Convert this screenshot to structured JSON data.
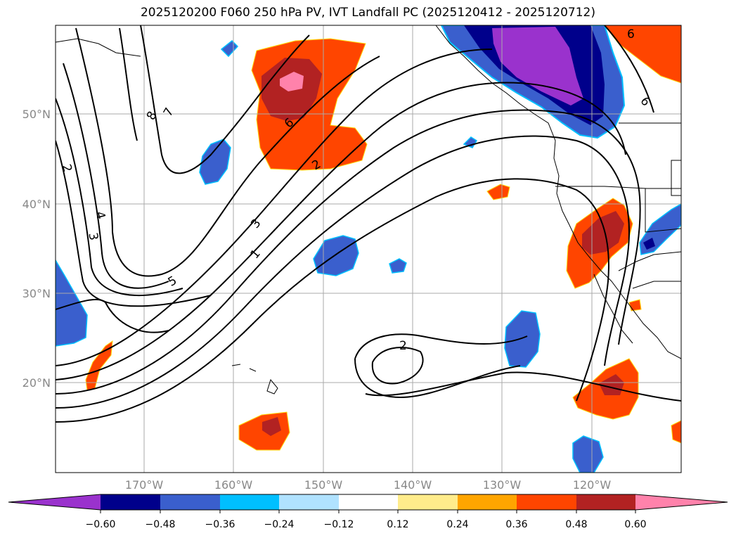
{
  "title": "2025120200 F060 250 hPa PV, IVT Landfall PC (2025120412 - 2025120712)",
  "map": {
    "projection": "cylindrical",
    "lon_range": [
      "180°",
      "110°W"
    ],
    "lat_range": [
      "10°N",
      "60°N"
    ],
    "grid": true,
    "lat_labels": [
      "50°N",
      "40°N",
      "30°N",
      "20°N"
    ],
    "lon_labels": [
      "170°W",
      "160°W",
      "150°W",
      "140°W",
      "130°W",
      "120°W"
    ],
    "contour_labels": [
      "8",
      "7",
      "2",
      "4",
      "3",
      "5",
      "3",
      "1",
      "6",
      "2",
      "2",
      "6",
      "6"
    ]
  },
  "colorbar": {
    "extend": "both",
    "tick_labels": [
      "−0.60",
      "−0.48",
      "−0.36",
      "−0.24",
      "−0.12",
      "0.12",
      "0.24",
      "0.36",
      "0.48",
      "0.60"
    ],
    "colors": [
      "#9a32cd",
      "#00008b",
      "#3a5fcd",
      "#00bfff",
      "#b0e2ff",
      "#ffffff",
      "#ffec8b",
      "#ffa500",
      "#ff4500",
      "#b22222",
      "#ff82ab"
    ]
  }
}
